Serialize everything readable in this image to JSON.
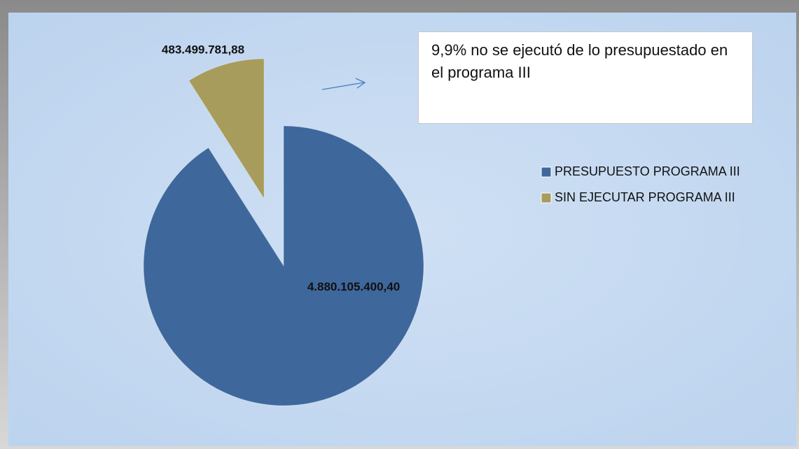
{
  "chart_data": {
    "type": "pie",
    "categories": [
      "PRESUPUESTO PROGRAMA III",
      "SIN EJECUTAR PROGRAMA III"
    ],
    "values": [
      4880105400.4,
      483499781.88
    ],
    "value_labels": [
      "4.880.105.400,40",
      "483.499.781,88"
    ],
    "colors": [
      "#3e679c",
      "#a79c5c"
    ],
    "explode": [
      false,
      true
    ],
    "legend": "right",
    "annotation": "9,9%  no se ejecutó de lo presupuestado en el programa III"
  }
}
